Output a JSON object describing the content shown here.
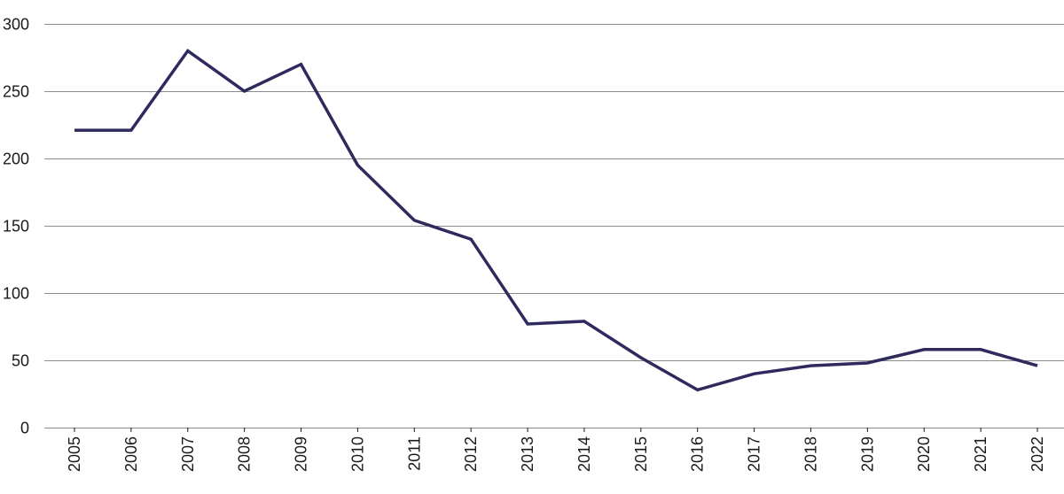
{
  "chart_data": {
    "type": "line",
    "title": "",
    "xlabel": "",
    "ylabel": "",
    "categories": [
      "2005",
      "2006",
      "2007",
      "2008",
      "2009",
      "2010",
      "2011",
      "2012",
      "2013",
      "2014",
      "2015",
      "2016",
      "2017",
      "2018",
      "2019",
      "2020",
      "2021",
      "2022"
    ],
    "series": [
      {
        "values": [
          221,
          221,
          280,
          250,
          270,
          195,
          154,
          140,
          77,
          79,
          52,
          28,
          40,
          46,
          48,
          58,
          58,
          46
        ]
      }
    ],
    "ylim": [
      0,
      300
    ],
    "yticks": [
      0,
      50,
      100,
      150,
      200,
      250,
      300
    ],
    "grid": "horizontal",
    "legend": "none",
    "colors": {
      "line": "#2e2a5e",
      "grid": "#8c8c8c",
      "text": "#1a1a1a"
    }
  }
}
